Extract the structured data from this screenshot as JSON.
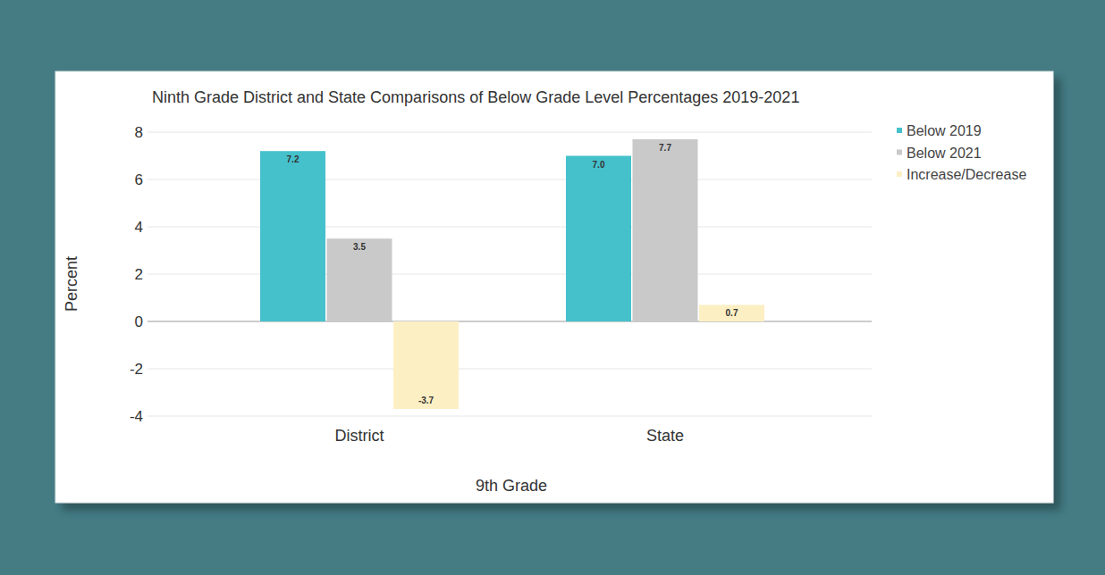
{
  "chart_data": {
    "type": "bar",
    "title": "Ninth Grade District and State Comparisons of Below Grade Level Percentages 2019-2021",
    "xlabel": "9th Grade",
    "ylabel": "Percent",
    "categories": [
      "District",
      "State"
    ],
    "series": [
      {
        "name": "Below 2019",
        "color": "#45c1cc",
        "values": [
          7.2,
          7.0
        ],
        "value_labels": [
          "7.2",
          "7.0"
        ]
      },
      {
        "name": "Below 2021",
        "color": "#c9c9c9",
        "values": [
          3.5,
          7.7
        ]
      },
      {
        "name": "Increase/Decrease",
        "color": "#fdefc4",
        "values": [
          -3.7,
          0.7
        ]
      }
    ],
    "ylim": [
      -4,
      8
    ],
    "yticks": [
      -4,
      -2,
      0,
      2,
      4,
      6,
      8
    ],
    "grid": true,
    "legend": "right",
    "data_labels": true
  }
}
